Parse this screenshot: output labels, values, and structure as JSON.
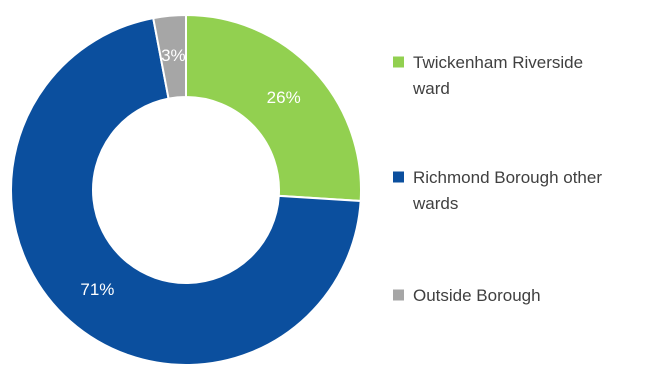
{
  "chart_data": {
    "type": "pie",
    "style": "donut",
    "categories": [
      "Twickenham Riverside ward",
      "Richmond Borough other wards",
      "Outside Borough"
    ],
    "values": [
      26,
      71,
      3
    ],
    "value_labels": [
      "26%",
      "71%",
      "3%"
    ],
    "colors": [
      "#92d050",
      "#0b4f9e",
      "#a6a6a6"
    ],
    "legend_position": "right",
    "legend_lines": [
      [
        "Twickenham Riverside",
        "ward"
      ],
      [
        "Richmond Borough other",
        "wards"
      ],
      [
        "Outside Borough"
      ]
    ],
    "title": "",
    "start_angle_deg": 0,
    "direction": "clockwise"
  }
}
